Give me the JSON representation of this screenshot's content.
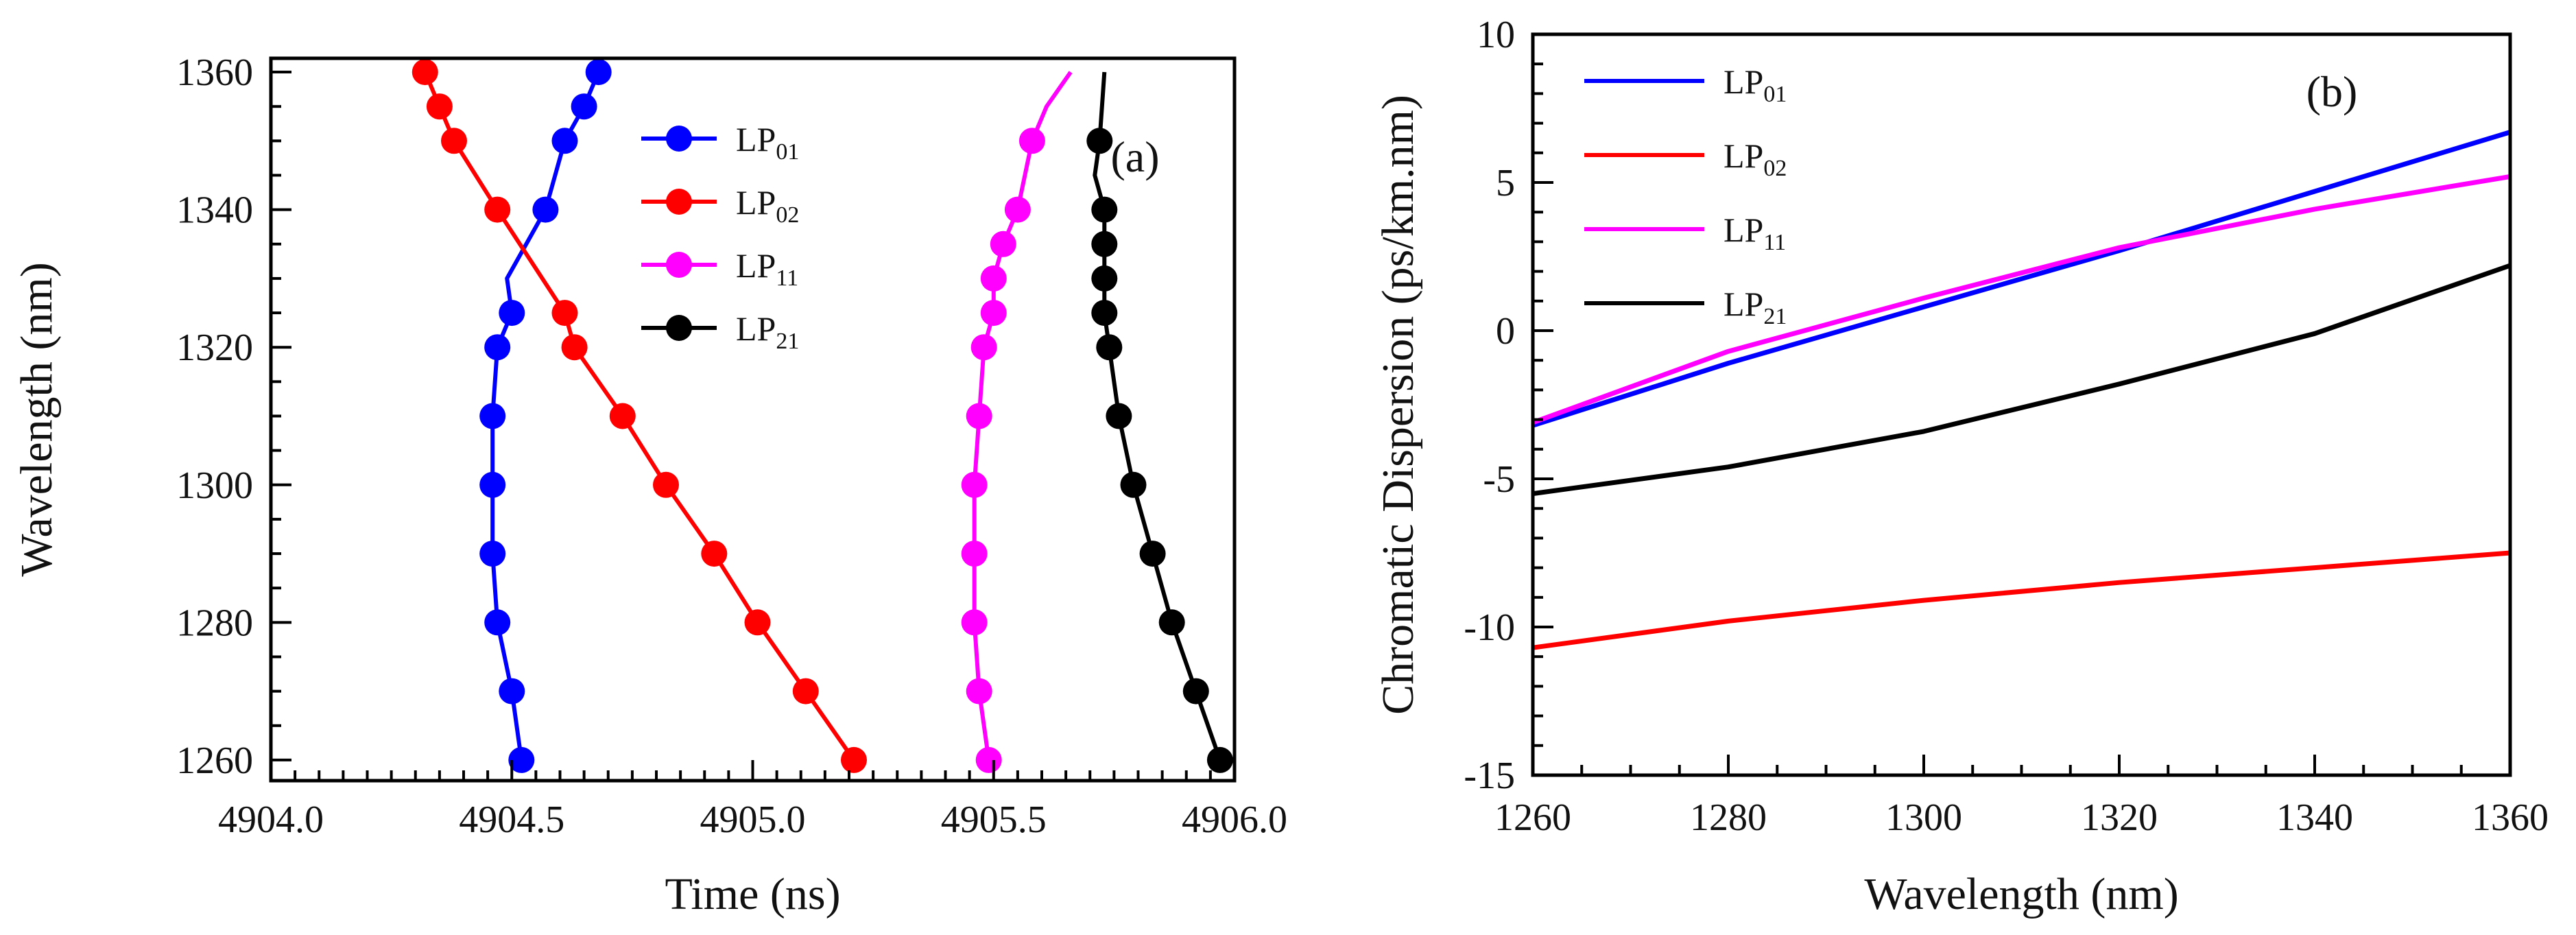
{
  "colors": {
    "LP01": "#0000ff",
    "LP02": "#ff0000",
    "LP11": "#ff00ff",
    "LP21": "#000000"
  },
  "chart_data": [
    {
      "type": "line",
      "panel": "(a)",
      "xlabel": "Time (ns)",
      "ylabel": "Wavelength (nm)",
      "xlim": [
        4904.0,
        4906.0
      ],
      "ylim": [
        1257,
        1362
      ],
      "xticks": [
        4904.0,
        4904.5,
        4905.0,
        4905.5,
        4906.0
      ],
      "xtick_labels": [
        "4904.0",
        "4904.5",
        "4905.0",
        "4905.5",
        "4906.0"
      ],
      "yticks": [
        1260,
        1280,
        1300,
        1320,
        1340,
        1360
      ],
      "ytick_labels": [
        "1260",
        "1280",
        "1300",
        "1320",
        "1340",
        "1360"
      ],
      "legend_position": "top-right",
      "markers": true,
      "series": [
        {
          "name": "LP01",
          "label_base": "LP",
          "label_sub": "01",
          "color": "#0000ff",
          "x": [
            4904.52,
            4904.5,
            4904.47,
            4904.46,
            4904.46,
            4904.46,
            4904.47,
            4904.5,
            4904.49,
            4904.57,
            4904.61,
            4904.65,
            4904.68
          ],
          "y": [
            1260,
            1270,
            1280,
            1290,
            1300,
            1310,
            1320,
            1325,
            1330,
            1340,
            1350,
            1355,
            1360
          ],
          "marker_y": [
            1260,
            1270,
            1280,
            1290,
            1300,
            1310,
            1320,
            1325,
            1340,
            1350,
            1355,
            1360
          ]
        },
        {
          "name": "LP02",
          "label_base": "LP",
          "label_sub": "02",
          "color": "#ff0000",
          "x": [
            4905.21,
            4905.11,
            4905.01,
            4904.92,
            4904.82,
            4904.73,
            4904.63,
            4904.61,
            4904.47,
            4904.38,
            4904.35,
            4904.32
          ],
          "y": [
            1260,
            1270,
            1280,
            1290,
            1300,
            1310,
            1320,
            1325,
            1340,
            1350,
            1355,
            1360
          ]
        },
        {
          "name": "LP11",
          "label_base": "LP",
          "label_sub": "11",
          "color": "#ff00ff",
          "x": [
            4905.49,
            4905.47,
            4905.46,
            4905.46,
            4905.46,
            4905.47,
            4905.48,
            4905.5,
            4905.5,
            4905.52,
            4905.55,
            4905.58,
            4905.61,
            4905.66
          ],
          "y": [
            1260,
            1270,
            1280,
            1290,
            1300,
            1310,
            1320,
            1325,
            1330,
            1335,
            1340,
            1350,
            1355,
            1360
          ],
          "marker_y": [
            1260,
            1270,
            1280,
            1290,
            1300,
            1310,
            1320,
            1325,
            1330,
            1335,
            1340,
            1350
          ]
        },
        {
          "name": "LP21",
          "label_base": "LP",
          "label_sub": "21",
          "color": "#000000",
          "x": [
            4905.97,
            4905.92,
            4905.87,
            4905.83,
            4905.79,
            4905.76,
            4905.74,
            4905.73,
            4905.73,
            4905.73,
            4905.73,
            4905.71,
            4905.72,
            4905.73
          ],
          "y": [
            1260,
            1270,
            1280,
            1290,
            1300,
            1310,
            1320,
            1325,
            1330,
            1335,
            1340,
            1345,
            1350,
            1360
          ],
          "marker_y": [
            1260,
            1270,
            1280,
            1290,
            1300,
            1310,
            1320,
            1325,
            1330,
            1335,
            1340,
            1350
          ]
        }
      ]
    },
    {
      "type": "line",
      "panel": "(b)",
      "xlabel": "Wavelength (nm)",
      "ylabel": "Chromatic Dispersion (ps/km.nm)",
      "xlim": [
        1260,
        1360
      ],
      "ylim": [
        -15,
        10
      ],
      "xticks": [
        1260,
        1280,
        1300,
        1320,
        1340,
        1360
      ],
      "xtick_labels": [
        "1260",
        "1280",
        "1300",
        "1320",
        "1340",
        "1360"
      ],
      "yticks": [
        -15,
        -10,
        -5,
        0,
        5,
        10
      ],
      "ytick_labels": [
        "-15",
        "-10",
        "-5",
        "0",
        "5",
        "10"
      ],
      "legend_position": "top-left",
      "markers": false,
      "series": [
        {
          "name": "LP01",
          "label_base": "LP",
          "label_sub": "01",
          "color": "#0000ff",
          "x": [
            1260,
            1280,
            1300,
            1320,
            1340,
            1360
          ],
          "y": [
            -3.2,
            -1.1,
            0.8,
            2.7,
            4.7,
            6.7
          ]
        },
        {
          "name": "LP02",
          "label_base": "LP",
          "label_sub": "02",
          "color": "#ff0000",
          "x": [
            1260,
            1280,
            1300,
            1320,
            1340,
            1360
          ],
          "y": [
            -10.7,
            -9.8,
            -9.1,
            -8.5,
            -8.0,
            -7.5
          ]
        },
        {
          "name": "LP11",
          "label_base": "LP",
          "label_sub": "11",
          "color": "#ff00ff",
          "x": [
            1260,
            1280,
            1300,
            1320,
            1340,
            1360
          ],
          "y": [
            -3.1,
            -0.7,
            1.1,
            2.8,
            4.1,
            5.2
          ]
        },
        {
          "name": "LP21",
          "label_base": "LP",
          "label_sub": "21",
          "color": "#000000",
          "x": [
            1260,
            1280,
            1300,
            1320,
            1340,
            1360
          ],
          "y": [
            -5.5,
            -4.6,
            -3.4,
            -1.8,
            -0.1,
            2.2
          ]
        }
      ]
    }
  ]
}
